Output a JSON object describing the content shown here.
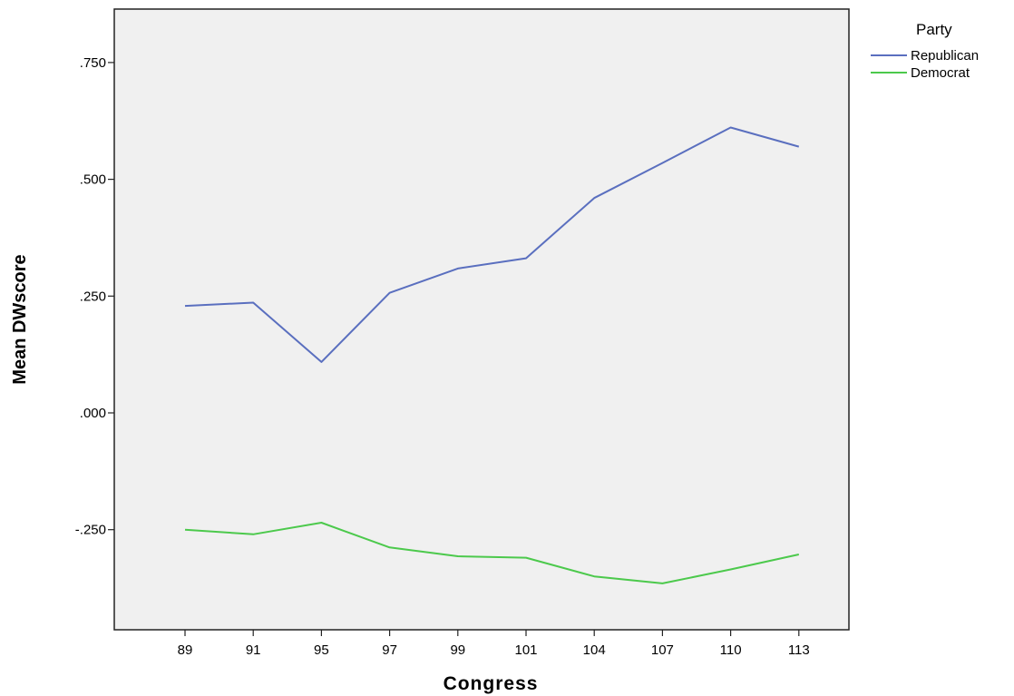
{
  "chart_data": {
    "type": "line",
    "xlabel": "Congress",
    "ylabel": "Mean DWscore",
    "categories": [
      "89",
      "91",
      "95",
      "97",
      "99",
      "101",
      "104",
      "107",
      "110",
      "113"
    ],
    "ylim": [
      -0.43,
      0.87
    ],
    "yticks": [
      {
        "value": 0.75,
        "label": ".750"
      },
      {
        "value": 0.5,
        "label": ".500"
      },
      {
        "value": 0.25,
        "label": ".250"
      },
      {
        "value": 0.0,
        "label": ".000"
      },
      {
        "value": -0.25,
        "label": "-.250"
      }
    ],
    "grid": false,
    "legend": {
      "title": "Party",
      "placement": "top-right, outside plot"
    },
    "series": [
      {
        "name": "Republican",
        "color": "#5a6fbf",
        "values": [
          0.229,
          0.236,
          0.109,
          0.257,
          0.309,
          0.331,
          0.46,
          0.535,
          0.611,
          0.57
        ]
      },
      {
        "name": "Democrat",
        "color": "#4cc94c",
        "values": [
          -0.25,
          -0.26,
          -0.235,
          -0.288,
          -0.307,
          -0.31,
          -0.35,
          -0.365,
          -0.335,
          -0.303
        ]
      }
    ]
  }
}
